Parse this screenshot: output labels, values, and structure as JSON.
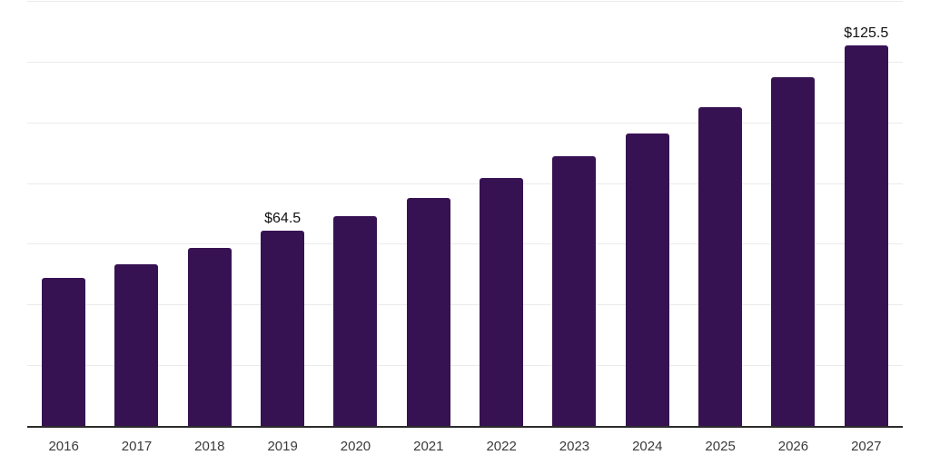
{
  "chart_data": {
    "type": "bar",
    "title": "",
    "xlabel": "",
    "ylabel": "",
    "categories": [
      "2016",
      "2017",
      "2018",
      "2019",
      "2020",
      "2021",
      "2022",
      "2023",
      "2024",
      "2025",
      "2026",
      "2027"
    ],
    "values": [
      49.0,
      53.6,
      58.8,
      64.5,
      69.4,
      75.3,
      81.9,
      89.1,
      96.7,
      105.3,
      115.1,
      125.5
    ],
    "data_labels": [
      "",
      "",
      "",
      "$64.5",
      "",
      "",
      "",
      "",
      "",
      "",
      "",
      "$125.5"
    ],
    "ylim": [
      0,
      140
    ],
    "gridline_step": 20,
    "grid": "horizontal",
    "legend": "none",
    "y_axis_ticks_visible": false,
    "colors": {
      "bar": "#371253",
      "axis_line": "#2b2b2b",
      "gridline": "#ebebeb",
      "tick_label": "#3a3a3a",
      "data_label": "#111111",
      "background": "#ffffff"
    }
  }
}
